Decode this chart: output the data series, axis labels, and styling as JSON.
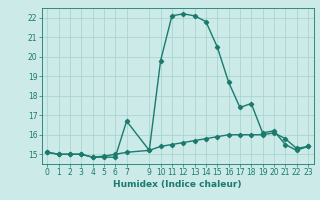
{
  "xlabel": "Humidex (Indice chaleur)",
  "background_color": "#cceae7",
  "grid_color": "#aad4d0",
  "line_color": "#1a7a6e",
  "marker_color": "#1a7a6e",
  "xlim": [
    -0.5,
    23.5
  ],
  "ylim": [
    14.5,
    22.5
  ],
  "yticks": [
    15,
    16,
    17,
    18,
    19,
    20,
    21,
    22
  ],
  "xtick_positions": [
    0,
    1,
    2,
    3,
    4,
    5,
    6,
    7,
    9,
    10,
    11,
    12,
    13,
    14,
    15,
    16,
    17,
    18,
    19,
    20,
    21,
    22,
    23
  ],
  "xtick_labels": [
    "0",
    "1",
    "2",
    "3",
    "4",
    "5",
    "6",
    "7",
    "9",
    "10",
    "11",
    "12",
    "13",
    "14",
    "15",
    "16",
    "17",
    "18",
    "19",
    "20",
    "21",
    "22",
    "23"
  ],
  "series1_x": [
    0,
    1,
    2,
    3,
    4,
    5,
    6,
    7,
    9,
    10,
    11,
    12,
    13,
    14,
    15,
    16,
    17,
    18,
    19,
    20,
    21,
    22,
    23
  ],
  "series1_y": [
    15.1,
    15.0,
    15.0,
    15.0,
    14.85,
    14.85,
    14.85,
    16.7,
    15.2,
    19.8,
    22.1,
    22.2,
    22.1,
    21.8,
    20.5,
    18.7,
    17.4,
    17.6,
    16.1,
    16.2,
    15.5,
    15.2,
    15.4
  ],
  "series2_x": [
    0,
    1,
    2,
    3,
    4,
    5,
    6,
    7,
    9,
    10,
    11,
    12,
    13,
    14,
    15,
    16,
    17,
    18,
    19,
    20,
    21,
    22,
    23
  ],
  "series2_y": [
    15.1,
    15.0,
    15.0,
    15.0,
    14.85,
    14.9,
    15.0,
    15.1,
    15.2,
    15.4,
    15.5,
    15.6,
    15.7,
    15.8,
    15.9,
    16.0,
    16.0,
    16.0,
    16.0,
    16.1,
    15.8,
    15.3,
    15.4
  ],
  "label_fontsize": 5.5,
  "xlabel_fontsize": 6.5,
  "linewidth": 1.0,
  "markersize": 2.2
}
